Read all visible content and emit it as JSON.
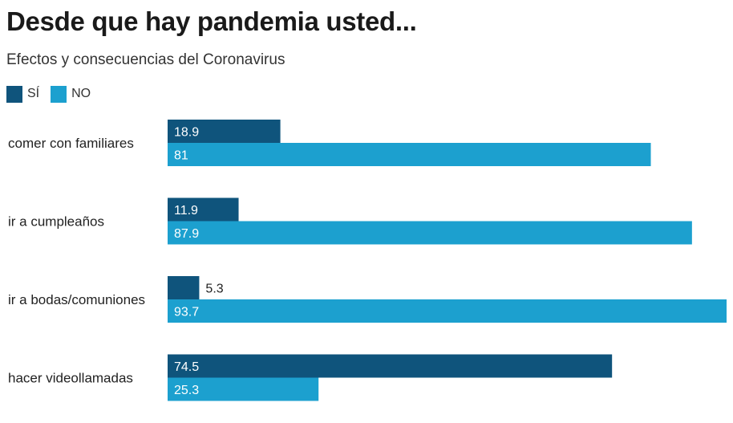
{
  "title": "Desde que hay pandemia usted...",
  "subtitle": "Efectos y consecuencias del Coronavirus",
  "colors": {
    "si": "#0f547c",
    "no": "#1ca0cf",
    "text": "#222222"
  },
  "chart_data": {
    "type": "bar",
    "orientation": "horizontal",
    "categories": [
      "comer con familiares",
      "ir a cumpleaños",
      "ir a bodas/comuniones",
      "hacer videollamadas"
    ],
    "series": [
      {
        "name": "SÍ",
        "values": [
          18.9,
          11.9,
          5.3,
          74.5
        ]
      },
      {
        "name": "NO",
        "values": [
          81,
          87.9,
          93.7,
          25.3
        ]
      }
    ],
    "xlim": [
      0,
      93.7
    ],
    "grid": false,
    "legend_position": "top-left",
    "data_labels": true
  }
}
